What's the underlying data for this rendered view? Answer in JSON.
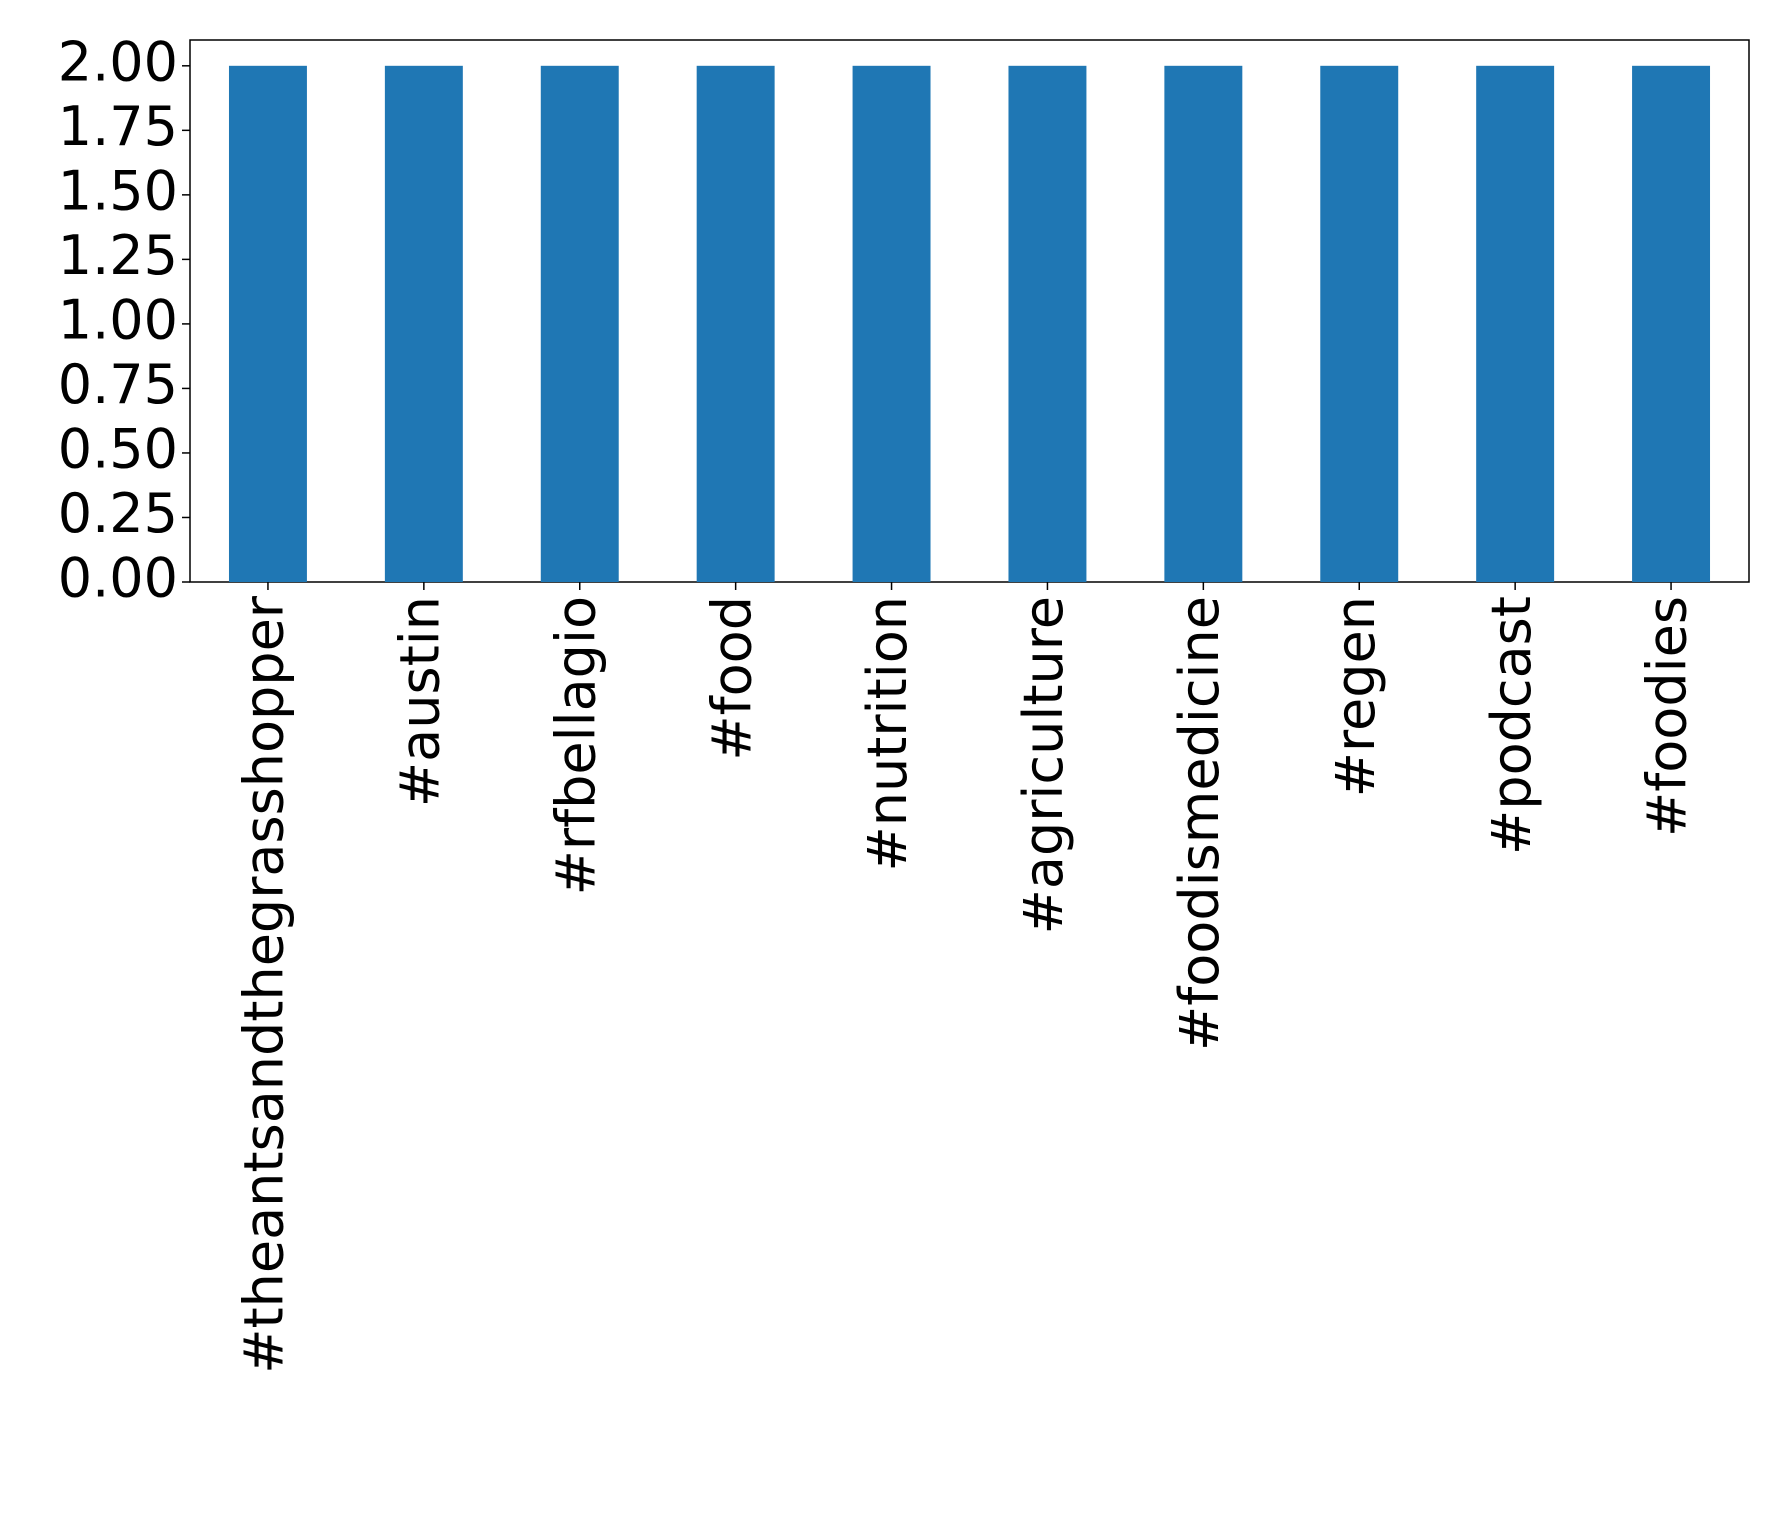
{
  "chart_data": {
    "type": "bar",
    "categories": [
      "#theantsandthegrasshopper",
      "#austin",
      "#rfbellagio",
      "#food",
      "#nutrition",
      "#agriculture",
      "#foodismedicine",
      "#regen",
      "#podcast",
      "#foodies"
    ],
    "values": [
      2,
      2,
      2,
      2,
      2,
      2,
      2,
      2,
      2,
      2
    ],
    "color": "#1f77b4",
    "ylim": [
      0,
      2.1
    ],
    "yticks": [
      {
        "value": 0,
        "label": "0.00"
      },
      {
        "value": 0.25,
        "label": "0.25"
      },
      {
        "value": 0.5,
        "label": "0.50"
      },
      {
        "value": 0.75,
        "label": "0.75"
      },
      {
        "value": 1,
        "label": "1.00"
      },
      {
        "value": 1.25,
        "label": "1.25"
      },
      {
        "value": 1.5,
        "label": "1.50"
      },
      {
        "value": 1.75,
        "label": "1.75"
      },
      {
        "value": 2,
        "label": "2.00"
      }
    ],
    "grid": false
  }
}
